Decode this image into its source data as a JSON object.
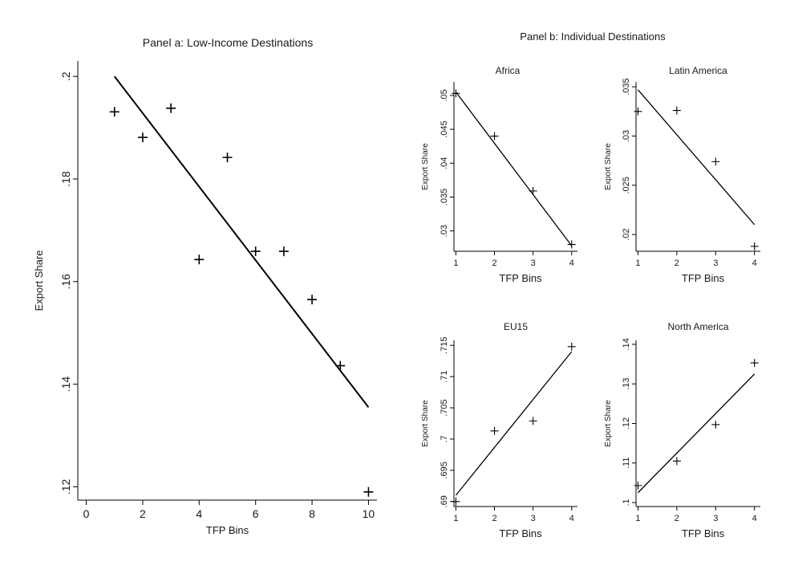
{
  "figure_title_b": "Panel b: Individual Destinations",
  "chart_data": [
    {
      "id": "a",
      "type": "scatter",
      "title": "Panel a: Low-Income Destinations",
      "xlabel": "TFP Bins",
      "ylabel": "Export Share",
      "x": [
        1,
        2,
        3,
        4,
        5,
        6,
        7,
        8,
        9,
        10
      ],
      "y": [
        0.1931,
        0.1881,
        0.1938,
        0.1643,
        0.1842,
        0.1659,
        0.1659,
        0.1565,
        0.1436,
        0.119
      ],
      "fit": [
        [
          1,
          0.2
        ],
        [
          10,
          0.1355
        ]
      ],
      "xlim": [
        -0.3,
        10.3
      ],
      "ylim": [
        0.1174,
        0.203
      ],
      "xticks": [
        0,
        2,
        4,
        6,
        8,
        10
      ],
      "xtick_labels": [
        "0",
        "2",
        "4",
        "6",
        "8",
        "10"
      ],
      "yticks": [
        0.12,
        0.14,
        0.16,
        0.18,
        0.2
      ],
      "ytick_labels": [
        ".12",
        ".14",
        ".16",
        ".18",
        ".2"
      ]
    },
    {
      "id": "africa",
      "type": "scatter",
      "title": "Africa",
      "xlabel": "TFP Bins",
      "ylabel": "Export Share",
      "x": [
        1,
        2,
        3,
        4
      ],
      "y": [
        0.0503,
        0.044,
        0.0359,
        0.028
      ],
      "fit": [
        [
          1,
          0.0505
        ],
        [
          4,
          0.0278
        ]
      ],
      "xlim": [
        0.95,
        4.15
      ],
      "ylim": [
        0.027,
        0.052
      ],
      "xticks": [
        1,
        2,
        3,
        4
      ],
      "xtick_labels": [
        "1",
        "2",
        "3",
        "4"
      ],
      "yticks": [
        0.03,
        0.035,
        0.04,
        0.045,
        0.05
      ],
      "ytick_labels": [
        ".03",
        ".035",
        ".04",
        ".045",
        ".05"
      ]
    },
    {
      "id": "latam",
      "type": "scatter",
      "title": "Latin America",
      "xlabel": "TFP Bins",
      "ylabel": "Export Share",
      "x": [
        1,
        2,
        3,
        4
      ],
      "y": [
        0.0325,
        0.0326,
        0.0274,
        0.0188
      ],
      "fit": [
        [
          1,
          0.0347
        ],
        [
          4,
          0.021
        ]
      ],
      "xlim": [
        0.95,
        4.15
      ],
      "ylim": [
        0.0183,
        0.0355
      ],
      "xticks": [
        1,
        2,
        3,
        4
      ],
      "xtick_labels": [
        "1",
        "2",
        "3",
        "4"
      ],
      "yticks": [
        0.02,
        0.025,
        0.03,
        0.035
      ],
      "ytick_labels": [
        ".02",
        ".025",
        ".03",
        ".035"
      ]
    },
    {
      "id": "eu15",
      "type": "scatter",
      "title": "EU15",
      "xlabel": "TFP Bins",
      "ylabel": "Export Share",
      "x": [
        1,
        2,
        3,
        4
      ],
      "y": [
        0.69,
        0.7013,
        0.7029,
        0.7148
      ],
      "fit": [
        [
          1,
          0.691
        ],
        [
          4,
          0.714
        ]
      ],
      "xlim": [
        0.95,
        4.15
      ],
      "ylim": [
        0.6892,
        0.7158
      ],
      "xticks": [
        1,
        2,
        3,
        4
      ],
      "xtick_labels": [
        "1",
        "2",
        "3",
        "4"
      ],
      "yticks": [
        0.69,
        0.695,
        0.7,
        0.705,
        0.71,
        0.715
      ],
      "ytick_labels": [
        ".69",
        ".695",
        ".7",
        ".705",
        ".71",
        ".715"
      ]
    },
    {
      "id": "northam",
      "type": "scatter",
      "title": "North America",
      "xlabel": "TFP Bins",
      "ylabel": "Export Share",
      "x": [
        1,
        2,
        3,
        4
      ],
      "y": [
        0.1043,
        0.1105,
        0.1197,
        0.1353
      ],
      "fit": [
        [
          1,
          0.1025
        ],
        [
          4,
          0.1325
        ]
      ],
      "xlim": [
        0.95,
        4.15
      ],
      "ylim": [
        0.099,
        0.141
      ],
      "xticks": [
        1,
        2,
        3,
        4
      ],
      "xtick_labels": [
        "1",
        "2",
        "3",
        "4"
      ],
      "yticks": [
        0.1,
        0.11,
        0.12,
        0.13,
        0.14
      ],
      "ytick_labels": [
        ".1",
        ".11",
        ".12",
        ".13",
        ".14"
      ]
    }
  ]
}
